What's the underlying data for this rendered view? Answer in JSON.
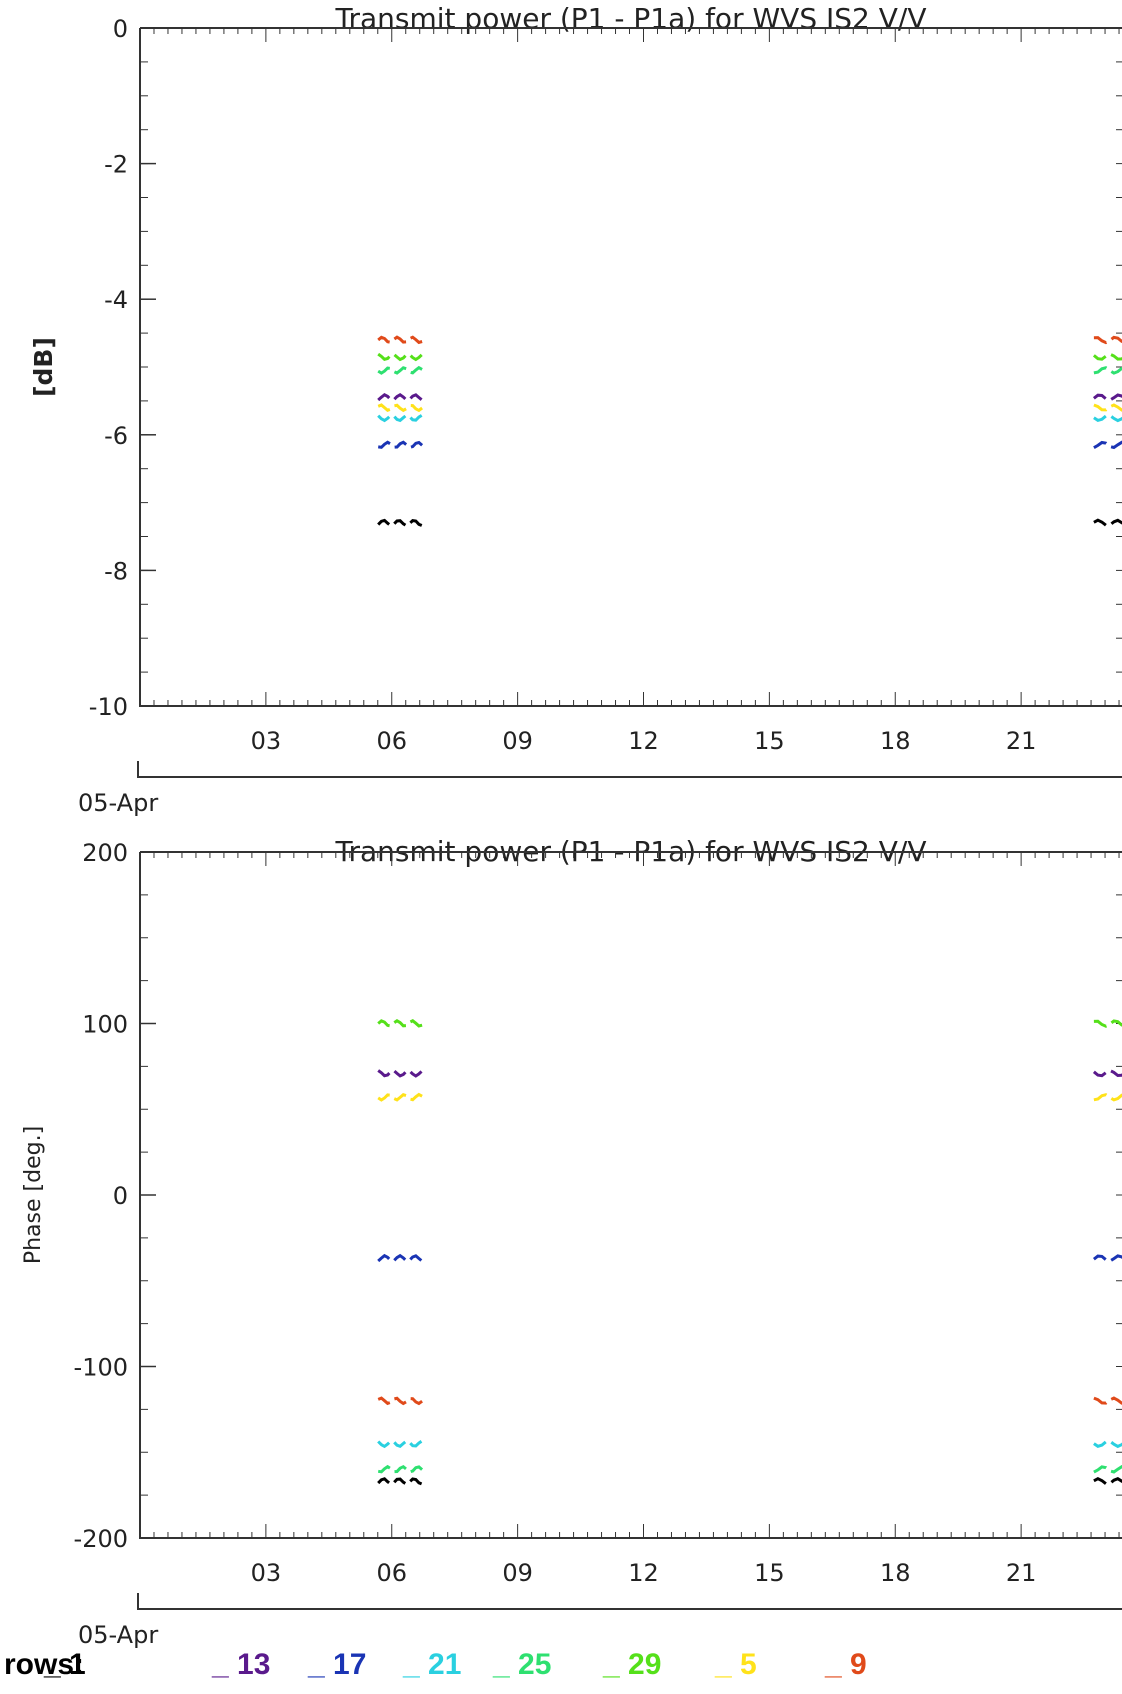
{
  "chart_data": [
    {
      "type": "scatter",
      "title": "Transmit power (P1 - P1a) for WVS IS2 V/V",
      "xlabel": "",
      "ylabel": "[dB]",
      "date_label": "05-Apr",
      "ylim": [
        -10,
        0
      ],
      "yticks": [
        0,
        -2,
        -4,
        -6,
        -8,
        -10
      ],
      "ytick_labels": [
        "0",
        "-2",
        "-4",
        "-6",
        "-8",
        "-10"
      ],
      "xlim": [
        0,
        24
      ],
      "xticks": [
        3,
        6,
        9,
        12,
        15,
        18,
        21
      ],
      "xtick_labels": [
        "03",
        "06",
        "09",
        "12",
        "15",
        "18",
        "21"
      ],
      "grid": false,
      "series": [
        {
          "name": "9",
          "color": "#e04a1a",
          "level": -4.6
        },
        {
          "name": "29",
          "color": "#55e01a",
          "level": -4.85
        },
        {
          "name": "25",
          "color": "#2ee070",
          "level": -5.05
        },
        {
          "name": "13",
          "color": "#5a1a8c",
          "level": -5.45
        },
        {
          "name": "5",
          "color": "#ffe21a",
          "level": -5.6
        },
        {
          "name": "21",
          "color": "#2ad0e0",
          "level": -5.75
        },
        {
          "name": "17",
          "color": "#1a34b4",
          "level": -6.15
        },
        {
          "name": "1",
          "color": "#000000",
          "level": -7.3
        }
      ]
    },
    {
      "type": "scatter",
      "title": "Transmit power (P1 - P1a) for WVS IS2 V/V",
      "xlabel": "",
      "ylabel": "Phase [deg.]",
      "date_label": "05-Apr",
      "ylim": [
        -200,
        200
      ],
      "yticks": [
        200,
        100,
        0,
        -100,
        -200
      ],
      "ytick_labels": [
        "200",
        "100",
        "0",
        "-100",
        "-200"
      ],
      "xlim": [
        0,
        24
      ],
      "xticks": [
        3,
        6,
        9,
        12,
        15,
        18,
        21
      ],
      "xtick_labels": [
        "03",
        "06",
        "09",
        "12",
        "15",
        "18",
        "21"
      ],
      "grid": false,
      "series": [
        {
          "name": "29",
          "color": "#55e01a",
          "level": 100
        },
        {
          "name": "13",
          "color": "#5a1a8c",
          "level": 71
        },
        {
          "name": "5",
          "color": "#ffe21a",
          "level": 57
        },
        {
          "name": "17",
          "color": "#1a34b4",
          "level": -37
        },
        {
          "name": "9",
          "color": "#e04a1a",
          "level": -120
        },
        {
          "name": "21",
          "color": "#2ad0e0",
          "level": -145
        },
        {
          "name": "25",
          "color": "#2ee070",
          "level": -160
        },
        {
          "name": "1",
          "color": "#000000",
          "level": -167
        }
      ]
    }
  ],
  "legend": {
    "title": "rows:",
    "items": [
      {
        "label": "_ 1",
        "color": "#000000"
      },
      {
        "label": "_ 13",
        "color": "#5a1a8c"
      },
      {
        "label": "_ 17",
        "color": "#1a34b4"
      },
      {
        "label": "_ 21",
        "color": "#2ad0e0"
      },
      {
        "label": "_ 25",
        "color": "#2ee070"
      },
      {
        "label": "_ 29",
        "color": "#55e01a"
      },
      {
        "label": "_ 5",
        "color": "#ffe21a"
      },
      {
        "label": "_ 9",
        "color": "#e04a1a"
      }
    ]
  }
}
